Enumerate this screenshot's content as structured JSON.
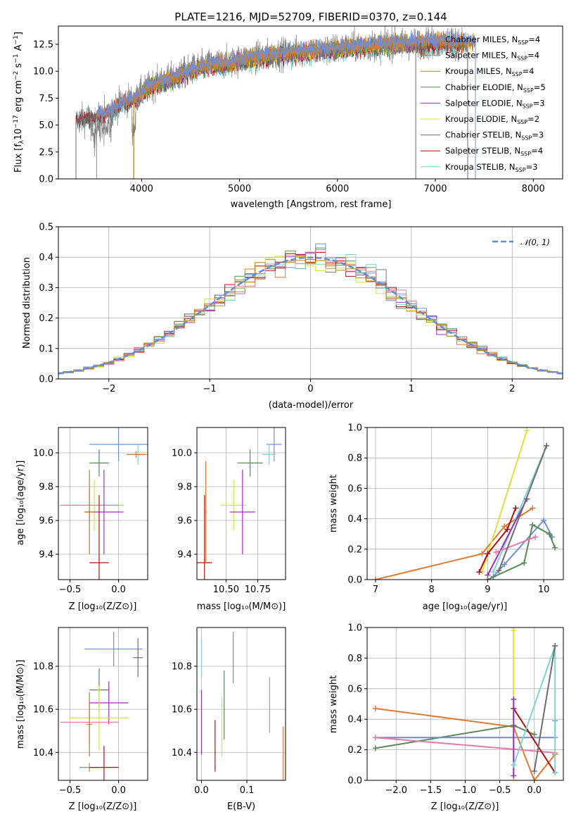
{
  "colors": {
    "Chabrier MILES": "#6e8fd6",
    "Salpeter MILES": "#e07a30",
    "Kroupa MILES": "#b8860b",
    "Chabrier ELODIE": "#5a8a5a",
    "Salpeter ELODIE": "#9b2fbf",
    "Kroupa ELODIE": "#dce23a",
    "Chabrier STELIB": "#6e6e6e",
    "Salpeter STELIB": "#b01010",
    "Kroupa STELIB": "#7fd3d3",
    "pink": "#e878a8",
    "lime": "#c6e84a",
    "norm": "#5b8fd9"
  },
  "chart_data": [
    {
      "type": "line",
      "title": "PLATE=1216, MJD=52709, FIBERID=0370, z=0.144",
      "xlabel": "wavelength [Angstrom, rest frame]",
      "ylabel": "Flux [f_λ 10⁻¹⁷ erg cm⁻² s⁻¹ A⁻¹]",
      "xlim": [
        3150,
        8300
      ],
      "ylim": [
        0,
        14.2
      ],
      "xticks": [
        4000,
        5000,
        6000,
        7000,
        8000
      ],
      "yticks": [
        "0.0",
        "2.5",
        "5.0",
        "7.5",
        "10.0",
        "12.5"
      ],
      "legend_position": "upper right",
      "legend": [
        {
          "base": "Chabrier MILES, N",
          "sub": "SSP",
          "val": "=4"
        },
        {
          "base": "Salpeter MILES, N",
          "sub": "SSP",
          "val": "=4"
        },
        {
          "base": "Kroupa MILES, N",
          "sub": "SSP",
          "val": "=4"
        },
        {
          "base": "Chabrier ELODIE, N",
          "sub": "SSP",
          "val": "=5"
        },
        {
          "base": "Salpeter ELODIE, N",
          "sub": "SSP",
          "val": "=3"
        },
        {
          "base": "Kroupa ELODIE, N",
          "sub": "SSP",
          "val": "=2"
        },
        {
          "base": "Chabrier STELIB, N",
          "sub": "SSP",
          "val": "=3"
        },
        {
          "base": "Salpeter STELIB, N",
          "sub": "SSP",
          "val": "=4"
        },
        {
          "base": "Kroupa STELIB, N",
          "sub": "SSP",
          "val": "=3"
        }
      ],
      "continuum": [
        [
          3330,
          5.4
        ],
        [
          3500,
          5.8
        ],
        [
          3650,
          6.2
        ],
        [
          3800,
          7.1
        ],
        [
          3950,
          7.6
        ],
        [
          4100,
          8.7
        ],
        [
          4300,
          9.3
        ],
        [
          4500,
          10.1
        ],
        [
          4700,
          10.6
        ],
        [
          4900,
          10.8
        ],
        [
          5100,
          11.2
        ],
        [
          5300,
          11.5
        ],
        [
          5600,
          11.8
        ],
        [
          5900,
          12.0
        ],
        [
          6200,
          12.3
        ],
        [
          6500,
          12.5
        ],
        [
          6800,
          12.6
        ],
        [
          7100,
          12.7
        ],
        [
          7400,
          12.6
        ],
        [
          7700,
          12.5
        ],
        [
          7950,
          12.3
        ]
      ],
      "data_range": [
        3330,
        7330
      ]
    },
    {
      "type": "bar",
      "subtype": "step-histogram",
      "xlabel": "(data-model)/error",
      "ylabel": "Normed distribution",
      "xlim": [
        -2.5,
        2.5
      ],
      "ylim": [
        0,
        0.5
      ],
      "xticks": [
        "−2",
        "−1",
        "0",
        "1",
        "2"
      ],
      "yticks": [
        "0.0",
        "0.1",
        "0.2",
        "0.3",
        "0.4",
        "0.5"
      ],
      "legend": "𝒩(0, 1)",
      "legend_position": "upper right",
      "grid": true
    },
    {
      "type": "scatter",
      "subtype": "errorbar",
      "xlabel": "Z [log₁₀(Z/Z⊙)]",
      "ylabel": "age  [log₁₀(age/yr)]",
      "xlim": [
        -0.62,
        0.3
      ],
      "ylim": [
        9.25,
        10.15
      ],
      "xticks": [
        "−0.5",
        "0.0"
      ],
      "yticks": [
        "9.4",
        "9.6",
        "9.8",
        "10.0"
      ],
      "grid": true,
      "points": [
        {
          "model": "Chabrier MILES",
          "x": 0.0,
          "xerr": 0.3,
          "y": 10.05,
          "yerr": 0.1
        },
        {
          "model": "Kroupa STELIB",
          "x": 0.2,
          "xerr": 0.1,
          "y": 9.99,
          "yerr": 0.06
        },
        {
          "model": "Chabrier ELODIE",
          "x": -0.2,
          "xerr": 0.1,
          "y": 9.94,
          "yerr": 0.08
        },
        {
          "model": "Salpeter MILES",
          "x": 0.18,
          "xerr": 0.1,
          "y": 9.99,
          "yerr": 0.02
        },
        {
          "model": "Kroupa ELODIE",
          "x": -0.25,
          "xerr": 0.3,
          "y": 9.69,
          "yerr": 0.15
        },
        {
          "model": "pink",
          "x": -0.3,
          "xerr": 0.3,
          "y": 9.69,
          "yerr": 0.1
        },
        {
          "model": "Salpeter ELODIE",
          "x": -0.15,
          "xerr": 0.2,
          "y": 9.65,
          "yerr": 0.25
        },
        {
          "model": "Salpeter STELIB",
          "x": -0.2,
          "xerr": 0.1,
          "y": 9.35,
          "yerr": 0.4
        },
        {
          "model": "Kroupa MILES",
          "x": -0.3,
          "xerr": 0.05,
          "y": 9.65,
          "yerr": 0.25
        }
      ]
    },
    {
      "type": "scatter",
      "subtype": "errorbar",
      "xlabel": "mass [log₁₀(M/M⊙)]",
      "ylabel": "",
      "xlim": [
        10.27,
        10.97
      ],
      "ylim": [
        9.25,
        10.15
      ],
      "xticks": [
        "10.50",
        "10.75"
      ],
      "yticks": [
        "9.4",
        "9.6",
        "9.8",
        "10.0"
      ],
      "grid": true,
      "points": [
        {
          "model": "Chabrier MILES",
          "x": 10.88,
          "xerr": 0.06,
          "y": 10.05,
          "yerr": 0.1
        },
        {
          "model": "Kroupa STELIB",
          "x": 10.84,
          "xerr": 0.05,
          "y": 9.99,
          "yerr": 0.06
        },
        {
          "model": "Chabrier ELODIE",
          "x": 10.69,
          "xerr": 0.1,
          "y": 9.94,
          "yerr": 0.08
        },
        {
          "model": "Kroupa ELODIE",
          "x": 10.56,
          "xerr": 0.1,
          "y": 9.69,
          "yerr": 0.15
        },
        {
          "model": "Salpeter ELODIE",
          "x": 10.63,
          "xerr": 0.1,
          "y": 9.65,
          "yerr": 0.25
        },
        {
          "model": "Salpeter STELIB",
          "x": 10.33,
          "xerr": 0.06,
          "y": 9.35,
          "yerr": 0.4
        },
        {
          "model": "Salpeter MILES",
          "x": 10.34,
          "xerr": 0.01,
          "y": 9.65,
          "yerr": 0.3
        }
      ]
    },
    {
      "type": "line",
      "xlabel": "age  [log₁₀(age/yr)]",
      "ylabel": "mass weight",
      "xlim": [
        6.85,
        10.35
      ],
      "ylim": [
        0,
        1.0
      ],
      "xticks": [
        "7",
        "8",
        "9",
        "10"
      ],
      "yticks": [
        "0.0",
        "0.2",
        "0.4",
        "0.6",
        "0.8",
        "1.0"
      ],
      "grid": true,
      "series": [
        {
          "model": "Salpeter MILES",
          "x": [
            7.0,
            8.9,
            9.3,
            9.8
          ],
          "y": [
            0.0,
            0.17,
            0.35,
            0.47
          ]
        },
        {
          "model": "Kroupa ELODIE",
          "x": [
            8.9,
            9.7
          ],
          "y": [
            0.05,
            0.98
          ]
        },
        {
          "model": "Kroupa STELIB",
          "x": [
            9.1,
            10.05
          ],
          "y": [
            0.05,
            0.88
          ]
        },
        {
          "model": "Salpeter STELIB",
          "x": [
            8.85,
            9.0,
            9.35,
            9.5
          ],
          "y": [
            0.05,
            0.17,
            0.33,
            0.47
          ]
        },
        {
          "model": "Salpeter ELODIE",
          "x": [
            9.0,
            9.7
          ],
          "y": [
            0.03,
            0.53
          ]
        },
        {
          "model": "Chabrier MILES",
          "x": [
            9.1,
            9.3,
            10.0,
            10.15
          ],
          "y": [
            0.02,
            0.1,
            0.39,
            0.28
          ]
        },
        {
          "model": "Chabrier ELODIE",
          "x": [
            9.0,
            9.65,
            9.8,
            10.1,
            10.2
          ],
          "y": [
            0.0,
            0.11,
            0.36,
            0.3,
            0.21
          ]
        },
        {
          "model": "pink",
          "x": [
            9.15,
            9.85
          ],
          "y": [
            0.18,
            0.28
          ]
        },
        {
          "model": "Chabrier STELIB",
          "x": [
            9.2,
            10.05
          ],
          "y": [
            0.06,
            0.88
          ]
        }
      ]
    },
    {
      "type": "scatter",
      "subtype": "errorbar",
      "xlabel": "Z [log₁₀(Z/Z⊙)]",
      "ylabel": "mass [log₁₀(M/M⊙)]",
      "xlim": [
        -0.62,
        0.3
      ],
      "ylim": [
        10.27,
        10.98
      ],
      "xticks": [
        "−0.5",
        "0.0"
      ],
      "yticks": [
        "10.4",
        "10.6",
        "10.8"
      ],
      "grid": true,
      "points": [
        {
          "model": "Chabrier MILES",
          "x": -0.05,
          "xerr": 0.3,
          "y": 10.88,
          "yerr": 0.08
        },
        {
          "model": "Chabrier STELIB",
          "x": 0.2,
          "xerr": 0.05,
          "y": 10.84,
          "yerr": 0.09
        },
        {
          "model": "Chabrier ELODIE",
          "x": -0.2,
          "xerr": 0.1,
          "y": 10.69,
          "yerr": 0.1
        },
        {
          "model": "Salpeter ELODIE",
          "x": -0.1,
          "xerr": 0.2,
          "y": 10.63,
          "yerr": 0.1
        },
        {
          "model": "Kroupa ELODIE",
          "x": -0.2,
          "xerr": 0.3,
          "y": 10.56,
          "yerr": 0.15
        },
        {
          "model": "pink",
          "x": -0.3,
          "xerr": 0.3,
          "y": 10.54,
          "yerr": 0.1
        },
        {
          "model": "Salpeter MILES",
          "x": -0.3,
          "xerr": 0.1,
          "y": 10.33,
          "yerr": 0.02
        },
        {
          "model": "Salpeter STELIB",
          "x": -0.15,
          "xerr": 0.15,
          "y": 10.33,
          "yerr": 0.1
        },
        {
          "model": "Kroupa MILES",
          "x": -0.3,
          "xerr": 0.03,
          "y": 10.53,
          "yerr": 0.15
        }
      ]
    },
    {
      "type": "scatter",
      "subtype": "errorbar",
      "xlabel": "E(B-V)",
      "ylabel": "",
      "xlim": [
        -0.01,
        0.185
      ],
      "ylim": [
        10.27,
        10.98
      ],
      "xticks": [
        "0.0",
        "0.1"
      ],
      "yticks": [
        "10.4",
        "10.6",
        "10.8"
      ],
      "grid": true,
      "points": [
        {
          "model": "Kroupa STELIB",
          "x": 0.0,
          "y": 10.84,
          "yerr": 0.09
        },
        {
          "model": "Salpeter ELODIE",
          "x": 0.0,
          "y": 10.54,
          "yerr": 0.15
        },
        {
          "model": "Salpeter STELIB",
          "x": 0.03,
          "y": 10.43,
          "yerr": 0.12
        },
        {
          "model": "Kroupa ELODIE",
          "x": 0.045,
          "y": 10.52,
          "yerr": 0.14
        },
        {
          "model": "Chabrier ELODIE",
          "x": 0.05,
          "y": 10.62,
          "yerr": 0.16
        },
        {
          "model": "Chabrier MILES",
          "x": 0.07,
          "y": 10.84,
          "yerr": 0.12
        },
        {
          "model": "pink",
          "x": 0.15,
          "y": 10.62,
          "yerr": 0.13
        },
        {
          "model": "Salpeter MILES",
          "x": 0.18,
          "y": 10.38,
          "yerr": 0.14
        }
      ]
    },
    {
      "type": "line",
      "xlabel": "Z [log₁₀(Z/Z⊙)]",
      "ylabel": "mass weight",
      "xlim": [
        -2.42,
        0.42
      ],
      "ylim": [
        0,
        1.0
      ],
      "xticks": [
        "−2.0",
        "−1.5",
        "−1.0",
        "−0.5",
        "0.0"
      ],
      "yticks": [
        "0.0",
        "0.2",
        "0.4",
        "0.6",
        "0.8",
        "1.0"
      ],
      "grid": true,
      "series": [
        {
          "model": "Salpeter MILES",
          "x": [
            -2.3,
            -0.3,
            0.0,
            0.3
          ],
          "y": [
            0.47,
            0.35,
            0.0,
            0.17
          ]
        },
        {
          "model": "Chabrier ELODIE",
          "x": [
            -2.3,
            -0.3,
            0.0
          ],
          "y": [
            0.21,
            0.36,
            0.3
          ]
        },
        {
          "model": "Chabrier MILES",
          "x": [
            -2.3,
            0.3,
            0.3
          ],
          "y": [
            0.28,
            0.28,
            0.39
          ]
        },
        {
          "model": "pink",
          "x": [
            -2.3,
            0.3
          ],
          "y": [
            0.28,
            0.18
          ]
        },
        {
          "model": "Kroupa ELODIE",
          "x": [
            -0.3,
            -0.3
          ],
          "y": [
            0.0,
            0.98
          ]
        },
        {
          "model": "Salpeter STELIB",
          "x": [
            -0.3,
            0.3
          ],
          "y": [
            0.47,
            0.05
          ]
        },
        {
          "model": "Salpeter ELODIE",
          "x": [
            -0.3,
            -0.3
          ],
          "y": [
            0.53,
            0.03
          ]
        },
        {
          "model": "Kroupa STELIB",
          "x": [
            -0.3,
            0.3,
            0.3
          ],
          "y": [
            0.1,
            0.88,
            0.05
          ]
        },
        {
          "model": "Chabrier STELIB",
          "x": [
            0.0,
            0.3
          ],
          "y": [
            0.06,
            0.88
          ]
        }
      ]
    }
  ]
}
